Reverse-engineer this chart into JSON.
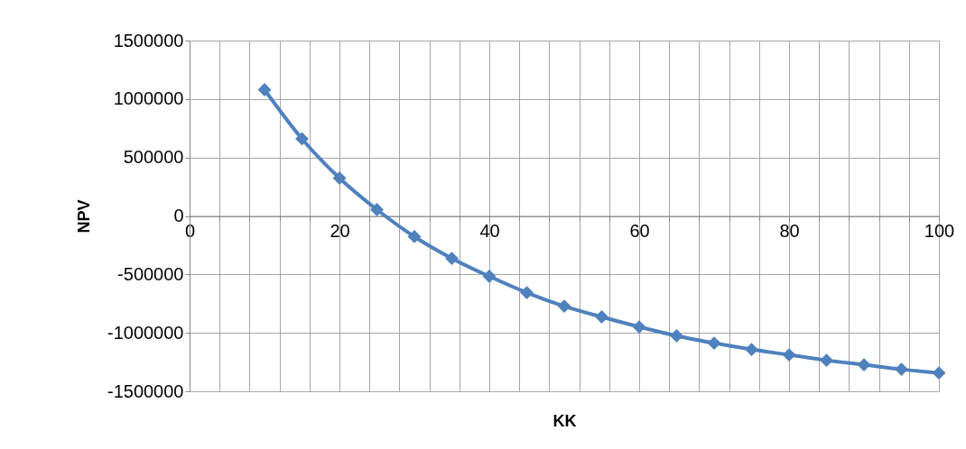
{
  "chart_data": {
    "type": "line",
    "xlabel": "KK",
    "ylabel": "NPV",
    "x": [
      10,
      15,
      20,
      25,
      30,
      35,
      40,
      45,
      50,
      55,
      60,
      65,
      70,
      75,
      80,
      85,
      90,
      95,
      100
    ],
    "series": [
      {
        "color": "#4f81bd",
        "values": [
          1080000,
          660000,
          324000,
          54000,
          -177000,
          -363000,
          -517000,
          -656000,
          -772000,
          -864000,
          -949000,
          -1026000,
          -1088000,
          -1142000,
          -1188000,
          -1235000,
          -1273000,
          -1312000,
          -1343000
        ]
      }
    ],
    "xlim": [
      0,
      100
    ],
    "ylim": [
      -1500000,
      1500000
    ],
    "xticks": [
      0,
      {
        "value": 4,
        "label": null
      },
      {
        "value": 8,
        "label": null
      },
      {
        "value": 12,
        "label": null
      },
      {
        "value": 16,
        "label": null
      },
      20,
      {
        "value": 24,
        "label": null
      },
      {
        "value": 28,
        "label": null
      },
      {
        "value": 32,
        "label": null
      },
      {
        "value": 36,
        "label": null
      },
      40,
      {
        "value": 44,
        "label": null
      },
      {
        "value": 48,
        "label": null
      },
      {
        "value": 52,
        "label": null
      },
      {
        "value": 56,
        "label": null
      },
      60,
      {
        "value": 64,
        "label": null
      },
      {
        "value": 68,
        "label": null
      },
      {
        "value": 72,
        "label": null
      },
      {
        "value": 76,
        "label": null
      },
      80,
      {
        "value": 84,
        "label": null
      },
      {
        "value": 88,
        "label": null
      },
      {
        "value": 92,
        "label": null
      },
      {
        "value": 96,
        "label": null
      },
      100
    ],
    "yticks": [
      -1500000,
      -1000000,
      -500000,
      0,
      500000,
      1000000,
      1500000
    ],
    "grid": true,
    "marker": "diamond",
    "line_style": "solid"
  }
}
